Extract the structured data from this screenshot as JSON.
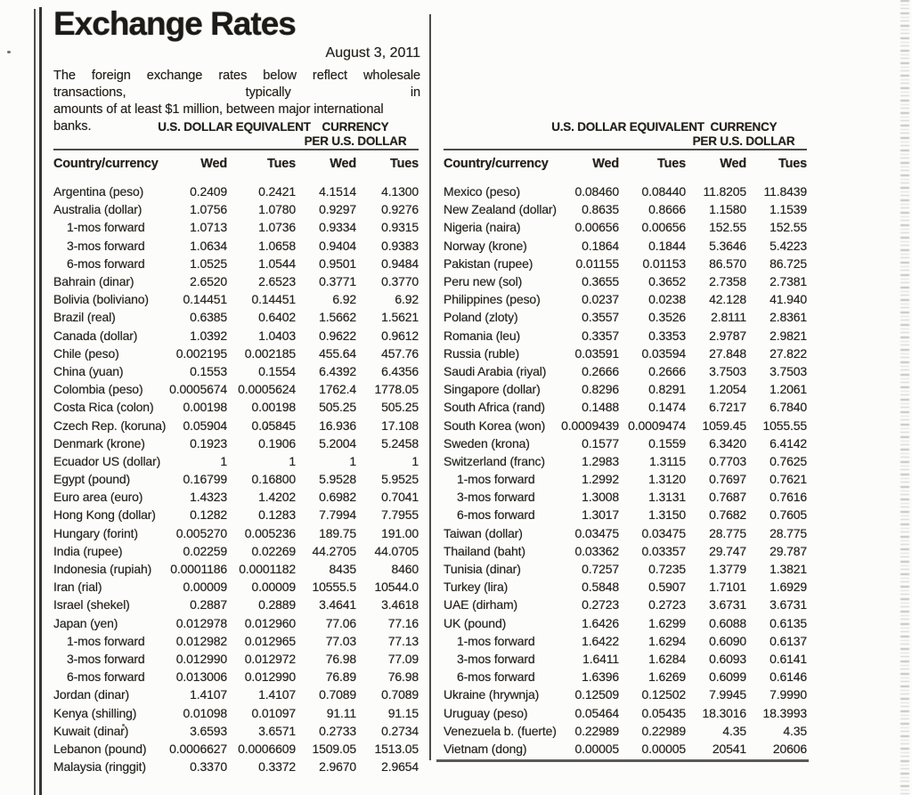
{
  "theme": {
    "ink": "#232019",
    "paper": "#fcfcfa"
  },
  "masthead": {
    "title": "Exchange Rates",
    "date": "August 3, 2011",
    "description_lines": [
      "The foreign exchange rates below reflect wholesale transactions, typically in",
      "amounts of at least $1 million, between major international banks."
    ]
  },
  "columns": {
    "country": "Country/currency",
    "group_usd_equivalent": "U.S. DOLLAR EQUIVALENT",
    "group_per_line1": "CURRENCY",
    "group_per_line2": "PER U.S. DOLLAR",
    "day_cols": [
      "Wed",
      "Tues",
      "Wed",
      "Tues"
    ]
  },
  "tables": {
    "left": {
      "rows": [
        {
          "country": "Argentina (peso)",
          "indent": false,
          "values": [
            "0.2409",
            "0.2421",
            "4.1514",
            "4.1300"
          ]
        },
        {
          "country": "Australia (dollar)",
          "indent": false,
          "values": [
            "1.0756",
            "1.0780",
            "0.9297",
            "0.9276"
          ]
        },
        {
          "country": "1-mos forward",
          "indent": true,
          "values": [
            "1.0713",
            "1.0736",
            "0.9334",
            "0.9315"
          ]
        },
        {
          "country": "3-mos forward",
          "indent": true,
          "values": [
            "1.0634",
            "1.0658",
            "0.9404",
            "0.9383"
          ]
        },
        {
          "country": "6-mos forward",
          "indent": true,
          "values": [
            "1.0525",
            "1.0544",
            "0.9501",
            "0.9484"
          ]
        },
        {
          "country": "Bahrain (dinar)",
          "indent": false,
          "values": [
            "2.6520",
            "2.6523",
            "0.3771",
            "0.3770"
          ]
        },
        {
          "country": "Bolivia (boliviano)",
          "indent": false,
          "values": [
            "0.14451",
            "0.14451",
            "6.92",
            "6.92"
          ]
        },
        {
          "country": "Brazil (real)",
          "indent": false,
          "values": [
            "0.6385",
            "0.6402",
            "1.5662",
            "1.5621"
          ]
        },
        {
          "country": "Canada (dollar)",
          "indent": false,
          "values": [
            "1.0392",
            "1.0403",
            "0.9622",
            "0.9612"
          ]
        },
        {
          "country": "Chile (peso)",
          "indent": false,
          "values": [
            "0.002195",
            "0.002185",
            "455.64",
            "457.76"
          ]
        },
        {
          "country": "China (yuan)",
          "indent": false,
          "values": [
            "0.1553",
            "0.1554",
            "6.4392",
            "6.4356"
          ]
        },
        {
          "country": "Colombia (peso)",
          "indent": false,
          "values": [
            "0.0005674",
            "0.0005624",
            "1762.4",
            "1778.05"
          ]
        },
        {
          "country": "Costa Rica (colon)",
          "indent": false,
          "values": [
            "0.00198",
            "0.00198",
            "505.25",
            "505.25"
          ]
        },
        {
          "country": "Czech Rep. (koruna)",
          "indent": false,
          "values": [
            "0.05904",
            "0.05845",
            "16.936",
            "17.108"
          ]
        },
        {
          "country": "Denmark (krone)",
          "indent": false,
          "values": [
            "0.1923",
            "0.1906",
            "5.2004",
            "5.2458"
          ]
        },
        {
          "country": "Ecuador US (dollar)",
          "indent": false,
          "values": [
            "1",
            "1",
            "1",
            "1"
          ]
        },
        {
          "country": "Egypt (pound)",
          "indent": false,
          "values": [
            "0.16799",
            "0.16800",
            "5.9528",
            "5.9525"
          ]
        },
        {
          "country": "Euro area (euro)",
          "indent": false,
          "values": [
            "1.4323",
            "1.4202",
            "0.6982",
            "0.7041"
          ]
        },
        {
          "country": "Hong Kong (dollar)",
          "indent": false,
          "values": [
            "0.1282",
            "0.1283",
            "7.7994",
            "7.7955"
          ]
        },
        {
          "country": "Hungary (forint)",
          "indent": false,
          "values": [
            "0.005270",
            "0.005236",
            "189.75",
            "191.00"
          ]
        },
        {
          "country": "India (rupee)",
          "indent": false,
          "values": [
            "0.02259",
            "0.02269",
            "44.2705",
            "44.0705"
          ]
        },
        {
          "country": "Indonesia (rupiah)",
          "indent": false,
          "values": [
            "0.0001186",
            "0.0001182",
            "8435",
            "8460"
          ]
        },
        {
          "country": "Iran (rial)",
          "indent": false,
          "values": [
            "0.00009",
            "0.00009",
            "10555.5",
            "10544.0"
          ]
        },
        {
          "country": "Israel (shekel)",
          "indent": false,
          "values": [
            "0.2887",
            "0.2889",
            "3.4641",
            "3.4618"
          ]
        },
        {
          "country": "Japan (yen)",
          "indent": false,
          "values": [
            "0.012978",
            "0.012960",
            "77.06",
            "77.16"
          ]
        },
        {
          "country": "1-mos forward",
          "indent": true,
          "values": [
            "0.012982",
            "0.012965",
            "77.03",
            "77.13"
          ]
        },
        {
          "country": "3-mos forward",
          "indent": true,
          "values": [
            "0.012990",
            "0.012972",
            "76.98",
            "77.09"
          ]
        },
        {
          "country": "6-mos forward",
          "indent": true,
          "values": [
            "0.013006",
            "0.012990",
            "76.89",
            "76.98"
          ]
        },
        {
          "country": "Jordan (dinar)",
          "indent": false,
          "values": [
            "1.4107",
            "1.4107",
            "0.7089",
            "0.7089"
          ]
        },
        {
          "country": "Kenya (shilling)",
          "indent": false,
          "values": [
            "0.01098",
            "0.01097",
            "91.11",
            "91.15"
          ]
        },
        {
          "country": "Kuwait (dinar)",
          "indent": false,
          "values": [
            "3.6593",
            "3.6571",
            "0.2733",
            "0.2734"
          ]
        },
        {
          "country": "Lebanon (pound)",
          "indent": false,
          "values": [
            "0.0006627",
            "0.0006609",
            "1509.05",
            "1513.05"
          ]
        },
        {
          "country": "Malaysia (ringgit)",
          "indent": false,
          "values": [
            "0.3370",
            "0.3372",
            "2.9670",
            "2.9654"
          ]
        }
      ]
    },
    "right": {
      "rows": [
        {
          "country": "Mexico (peso)",
          "indent": false,
          "values": [
            "0.08460",
            "0.08440",
            "11.8205",
            "11.8439"
          ]
        },
        {
          "country": "New Zealand (dollar)",
          "indent": false,
          "values": [
            "0.8635",
            "0.8666",
            "1.1580",
            "1.1539"
          ]
        },
        {
          "country": "Nigeria (naira)",
          "indent": false,
          "values": [
            "0.00656",
            "0.00656",
            "152.55",
            "152.55"
          ]
        },
        {
          "country": "Norway (krone)",
          "indent": false,
          "values": [
            "0.1864",
            "0.1844",
            "5.3646",
            "5.4223"
          ]
        },
        {
          "country": "Pakistan (rupee)",
          "indent": false,
          "values": [
            "0.01155",
            "0.01153",
            "86.570",
            "86.725"
          ]
        },
        {
          "country": "Peru new (sol)",
          "indent": false,
          "values": [
            "0.3655",
            "0.3652",
            "2.7358",
            "2.7381"
          ]
        },
        {
          "country": "Philippines (peso)",
          "indent": false,
          "values": [
            "0.0237",
            "0.0238",
            "42.128",
            "41.940"
          ]
        },
        {
          "country": "Poland (zloty)",
          "indent": false,
          "values": [
            "0.3557",
            "0.3526",
            "2.8111",
            "2.8361"
          ]
        },
        {
          "country": "Romania (leu)",
          "indent": false,
          "values": [
            "0.3357",
            "0.3353",
            "2.9787",
            "2.9821"
          ]
        },
        {
          "country": "Russia (ruble)",
          "indent": false,
          "values": [
            "0.03591",
            "0.03594",
            "27.848",
            "27.822"
          ]
        },
        {
          "country": "Saudi Arabia (riyal)",
          "indent": false,
          "values": [
            "0.2666",
            "0.2666",
            "3.7503",
            "3.7503"
          ]
        },
        {
          "country": "Singapore (dollar)",
          "indent": false,
          "values": [
            "0.8296",
            "0.8291",
            "1.2054",
            "1.2061"
          ]
        },
        {
          "country": "South Africa (rand)",
          "indent": false,
          "values": [
            "0.1488",
            "0.1474",
            "6.7217",
            "6.7840"
          ]
        },
        {
          "country": "South Korea (won)",
          "indent": false,
          "values": [
            "0.0009439",
            "0.0009474",
            "1059.45",
            "1055.55"
          ]
        },
        {
          "country": "Sweden (krona)",
          "indent": false,
          "values": [
            "0.1577",
            "0.1559",
            "6.3420",
            "6.4142"
          ]
        },
        {
          "country": "Switzerland (franc)",
          "indent": false,
          "values": [
            "1.2983",
            "1.3115",
            "0.7703",
            "0.7625"
          ]
        },
        {
          "country": "1-mos forward",
          "indent": true,
          "values": [
            "1.2992",
            "1.3120",
            "0.7697",
            "0.7621"
          ]
        },
        {
          "country": "3-mos forward",
          "indent": true,
          "values": [
            "1.3008",
            "1.3131",
            "0.7687",
            "0.7616"
          ]
        },
        {
          "country": "6-mos forward",
          "indent": true,
          "values": [
            "1.3017",
            "1.3150",
            "0.7682",
            "0.7605"
          ]
        },
        {
          "country": "Taiwan (dollar)",
          "indent": false,
          "values": [
            "0.03475",
            "0.03475",
            "28.775",
            "28.775"
          ]
        },
        {
          "country": "Thailand (baht)",
          "indent": false,
          "values": [
            "0.03362",
            "0.03357",
            "29.747",
            "29.787"
          ]
        },
        {
          "country": "Tunisia (dinar)",
          "indent": false,
          "values": [
            "0.7257",
            "0.7235",
            "1.3779",
            "1.3821"
          ]
        },
        {
          "country": "Turkey (lira)",
          "indent": false,
          "values": [
            "0.5848",
            "0.5907",
            "1.7101",
            "1.6929"
          ]
        },
        {
          "country": "UAE (dirham)",
          "indent": false,
          "values": [
            "0.2723",
            "0.2723",
            "3.6731",
            "3.6731"
          ]
        },
        {
          "country": "UK (pound)",
          "indent": false,
          "values": [
            "1.6426",
            "1.6299",
            "0.6088",
            "0.6135"
          ]
        },
        {
          "country": "1-mos forward",
          "indent": true,
          "values": [
            "1.6422",
            "1.6294",
            "0.6090",
            "0.6137"
          ]
        },
        {
          "country": "3-mos forward",
          "indent": true,
          "values": [
            "1.6411",
            "1.6284",
            "0.6093",
            "0.6141"
          ]
        },
        {
          "country": "6-mos forward",
          "indent": true,
          "values": [
            "1.6396",
            "1.6269",
            "0.6099",
            "0.6146"
          ]
        },
        {
          "country": "Ukraine (hrywnja)",
          "indent": false,
          "values": [
            "0.12509",
            "0.12502",
            "7.9945",
            "7.9990"
          ]
        },
        {
          "country": "Uruguay (peso)",
          "indent": false,
          "values": [
            "0.05464",
            "0.05435",
            "18.3016",
            "18.3993"
          ]
        },
        {
          "country": "Venezuela b. (fuerte)",
          "indent": false,
          "values": [
            "0.22989",
            "0.22989",
            "4.35",
            "4.35"
          ]
        },
        {
          "country": "Vietnam (dong)",
          "indent": false,
          "values": [
            "0.00005",
            "0.00005",
            "20541",
            "20606"
          ]
        }
      ]
    }
  }
}
